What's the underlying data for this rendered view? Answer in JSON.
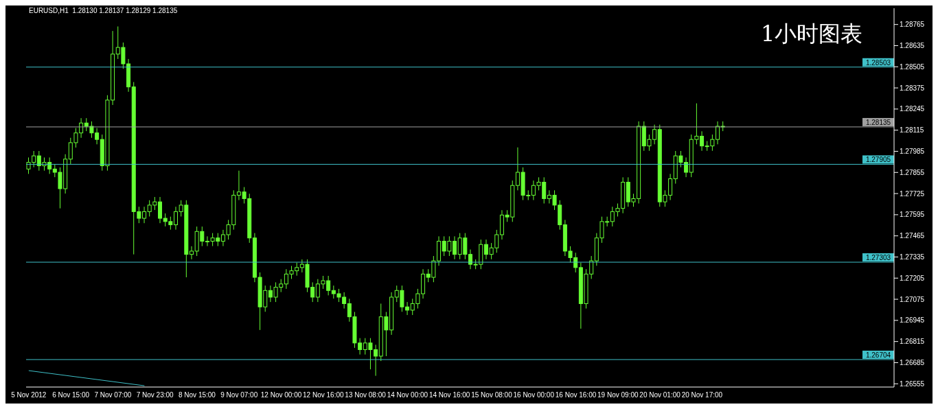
{
  "chart_data": {
    "type": "candlestick",
    "title": "EURUSD,H1  1.28130 1.28137 1.28129 1.28135",
    "annotations": [
      "1小时图表"
    ],
    "categories": [
      "5 Nov 2012",
      null,
      null,
      null,
      null,
      null,
      null,
      null,
      "6 Nov 15:00",
      null,
      null,
      null,
      null,
      null,
      null,
      null,
      "7 Nov 07:00",
      null,
      null,
      null,
      null,
      null,
      null,
      null,
      "7 Nov 23:00",
      null,
      null,
      null,
      null,
      null,
      null,
      null,
      "8 Nov 15:00",
      null,
      null,
      null,
      null,
      null,
      null,
      null,
      "9 Nov 07:00",
      null,
      null,
      null,
      null,
      null,
      null,
      null,
      "12 Nov 00:00",
      null,
      null,
      null,
      null,
      null,
      null,
      null,
      "12 Nov 16:00",
      null,
      null,
      null,
      null,
      null,
      null,
      null,
      "13 Nov 08:00",
      null,
      null,
      null,
      null,
      null,
      null,
      null,
      "14 Nov 00:00",
      null,
      null,
      null,
      null,
      null,
      null,
      null,
      "14 Nov 16:00",
      null,
      null,
      null,
      null,
      null,
      null,
      null,
      "15 Nov 08:00",
      null,
      null,
      null,
      null,
      null,
      null,
      null,
      "16 Nov 00:00",
      null,
      null,
      null,
      null,
      null,
      null,
      null,
      "16 Nov 16:00",
      null,
      null,
      null,
      null,
      null,
      null,
      null,
      "19 Nov 09:00",
      null,
      null,
      null,
      null,
      null,
      null,
      null,
      "20 Nov 01:00",
      null,
      null,
      null,
      null,
      null,
      null,
      null,
      "20 Nov 17:00",
      null,
      null,
      null,
      null,
      null,
      null,
      null,
      null,
      null,
      null,
      null,
      null,
      null,
      null,
      null,
      null,
      null,
      null,
      null,
      null,
      null,
      null,
      null,
      null,
      null,
      null,
      null,
      null,
      null,
      null,
      null,
      null,
      null,
      null,
      null,
      null
    ],
    "color": "#66ff33",
    "ohlc": [
      [
        1.27876,
        1.27947,
        1.27846,
        1.27917
      ],
      [
        1.27917,
        1.27987,
        1.27887,
        1.27957
      ],
      [
        1.27957,
        1.27987,
        1.27866,
        1.27896
      ],
      [
        1.27896,
        1.27947,
        1.27866,
        1.27917
      ],
      [
        1.27917,
        1.27947,
        1.27846,
        1.27876
      ],
      [
        1.27876,
        1.27906,
        1.27826,
        1.27856
      ],
      [
        1.27856,
        1.27886,
        1.27634,
        1.27755
      ],
      [
        1.27755,
        1.27967,
        1.27725,
        1.27937
      ],
      [
        1.27937,
        1.28068,
        1.27907,
        1.28038
      ],
      [
        1.28038,
        1.28128,
        1.28008,
        1.28098
      ],
      [
        1.28098,
        1.28189,
        1.28068,
        1.28159
      ],
      [
        1.28159,
        1.28189,
        1.28109,
        1.28139
      ],
      [
        1.28139,
        1.28169,
        1.28068,
        1.28098
      ],
      [
        1.28098,
        1.28128,
        1.28028,
        1.28058
      ],
      [
        1.28058,
        1.28088,
        1.27866,
        1.27896
      ],
      [
        1.27896,
        1.2833,
        1.27866,
        1.283
      ],
      [
        1.283,
        1.28725,
        1.2827,
        1.28583
      ],
      [
        1.28583,
        1.28753,
        1.28553,
        1.28624
      ],
      [
        1.28624,
        1.28654,
        1.28493,
        1.28523
      ],
      [
        1.28523,
        1.28553,
        1.28351,
        1.28381
      ],
      [
        1.28381,
        1.28411,
        1.27351,
        1.27614
      ],
      [
        1.27614,
        1.27644,
        1.27543,
        1.27573
      ],
      [
        1.27573,
        1.27644,
        1.27543,
        1.27614
      ],
      [
        1.27614,
        1.27684,
        1.27584,
        1.27654
      ],
      [
        1.27654,
        1.27704,
        1.27624,
        1.27674
      ],
      [
        1.27674,
        1.27704,
        1.27543,
        1.27573
      ],
      [
        1.27573,
        1.27603,
        1.27523,
        1.27553
      ],
      [
        1.27553,
        1.27583,
        1.27503,
        1.27533
      ],
      [
        1.27533,
        1.27644,
        1.27503,
        1.27614
      ],
      [
        1.27614,
        1.27684,
        1.27584,
        1.27654
      ],
      [
        1.27654,
        1.27684,
        1.2721,
        1.27351
      ],
      [
        1.27351,
        1.27401,
        1.27321,
        1.27371
      ],
      [
        1.27371,
        1.27522,
        1.27341,
        1.27492
      ],
      [
        1.27492,
        1.27522,
        1.27402,
        1.27432
      ],
      [
        1.27432,
        1.27462,
        1.27402,
        1.27432
      ],
      [
        1.27432,
        1.27482,
        1.27402,
        1.27452
      ],
      [
        1.27452,
        1.27482,
        1.27402,
        1.27432
      ],
      [
        1.27432,
        1.27502,
        1.27402,
        1.27472
      ],
      [
        1.27472,
        1.27563,
        1.27442,
        1.27533
      ],
      [
        1.27533,
        1.27745,
        1.27503,
        1.27715
      ],
      [
        1.27715,
        1.27866,
        1.27685,
        1.27735
      ],
      [
        1.27735,
        1.27765,
        1.27664,
        1.27694
      ],
      [
        1.27694,
        1.27724,
        1.27422,
        1.27452
      ],
      [
        1.27452,
        1.27482,
        1.2718,
        1.2721
      ],
      [
        1.2721,
        1.2724,
        1.26886,
        1.27028
      ],
      [
        1.27028,
        1.27159,
        1.26998,
        1.27129
      ],
      [
        1.27129,
        1.27159,
        1.27058,
        1.27088
      ],
      [
        1.27088,
        1.27179,
        1.27058,
        1.27149
      ],
      [
        1.27149,
        1.27199,
        1.27119,
        1.27169
      ],
      [
        1.27169,
        1.2726,
        1.27139,
        1.2723
      ],
      [
        1.2723,
        1.2728,
        1.272,
        1.2725
      ],
      [
        1.2725,
        1.273,
        1.2722,
        1.2727
      ],
      [
        1.2727,
        1.2732,
        1.2724,
        1.2729
      ],
      [
        1.2729,
        1.2732,
        1.27119,
        1.27149
      ],
      [
        1.27149,
        1.27179,
        1.27058,
        1.27088
      ],
      [
        1.27088,
        1.27199,
        1.27058,
        1.27169
      ],
      [
        1.27169,
        1.27219,
        1.27139,
        1.27189
      ],
      [
        1.27189,
        1.27219,
        1.27099,
        1.27129
      ],
      [
        1.27129,
        1.27159,
        1.27079,
        1.27109
      ],
      [
        1.27109,
        1.27139,
        1.27058,
        1.27088
      ],
      [
        1.27088,
        1.27118,
        1.27018,
        1.27048
      ],
      [
        1.27048,
        1.27078,
        1.26937,
        1.26967
      ],
      [
        1.26967,
        1.26997,
        1.26776,
        1.26806
      ],
      [
        1.26806,
        1.26836,
        1.26735,
        1.26765
      ],
      [
        1.26765,
        1.26836,
        1.26735,
        1.26806
      ],
      [
        1.26806,
        1.26836,
        1.26644,
        1.26765
      ],
      [
        1.26765,
        1.26795,
        1.26604,
        1.26725
      ],
      [
        1.26725,
        1.27048,
        1.26695,
        1.26967
      ],
      [
        1.26967,
        1.26997,
        1.26725,
        1.26886
      ],
      [
        1.26886,
        1.27118,
        1.26856,
        1.27088
      ],
      [
        1.27088,
        1.27159,
        1.27058,
        1.27129
      ],
      [
        1.27129,
        1.27159,
        1.26998,
        1.27028
      ],
      [
        1.27028,
        1.27058,
        1.26978,
        1.27008
      ],
      [
        1.27008,
        1.27078,
        1.26978,
        1.27048
      ],
      [
        1.27048,
        1.27139,
        1.27018,
        1.27109
      ],
      [
        1.27109,
        1.2726,
        1.27079,
        1.2723
      ],
      [
        1.2723,
        1.2726,
        1.2718,
        1.2721
      ],
      [
        1.2721,
        1.27341,
        1.2718,
        1.27311
      ],
      [
        1.27311,
        1.27462,
        1.27281,
        1.27432
      ],
      [
        1.27432,
        1.27462,
        1.27341,
        1.27371
      ],
      [
        1.27371,
        1.27462,
        1.27341,
        1.27432
      ],
      [
        1.27432,
        1.27462,
        1.27321,
        1.27351
      ],
      [
        1.27351,
        1.27482,
        1.27321,
        1.27452
      ],
      [
        1.27452,
        1.27482,
        1.27321,
        1.27351
      ],
      [
        1.27351,
        1.27381,
        1.2726,
        1.2729
      ],
      [
        1.2729,
        1.2732,
        1.2726,
        1.2729
      ],
      [
        1.2729,
        1.27442,
        1.2726,
        1.27412
      ],
      [
        1.27412,
        1.27442,
        1.27321,
        1.27351
      ],
      [
        1.27351,
        1.27421,
        1.27321,
        1.27391
      ],
      [
        1.27391,
        1.27502,
        1.27361,
        1.27472
      ],
      [
        1.27472,
        1.27623,
        1.27442,
        1.27593
      ],
      [
        1.27593,
        1.27623,
        1.27551,
        1.27581
      ],
      [
        1.27581,
        1.27805,
        1.27551,
        1.27775
      ],
      [
        1.27775,
        1.28009,
        1.27745,
        1.27856
      ],
      [
        1.27856,
        1.27886,
        1.27685,
        1.27715
      ],
      [
        1.27715,
        1.27745,
        1.27685,
        1.27715
      ],
      [
        1.27715,
        1.27805,
        1.27685,
        1.27775
      ],
      [
        1.27775,
        1.27825,
        1.27745,
        1.27795
      ],
      [
        1.27795,
        1.27825,
        1.27664,
        1.27694
      ],
      [
        1.27694,
        1.27745,
        1.27664,
        1.27715
      ],
      [
        1.27715,
        1.27745,
        1.27624,
        1.27654
      ],
      [
        1.27654,
        1.27684,
        1.27503,
        1.27533
      ],
      [
        1.27533,
        1.27563,
        1.27341,
        1.27371
      ],
      [
        1.27371,
        1.27401,
        1.27301,
        1.27331
      ],
      [
        1.27331,
        1.27361,
        1.2724,
        1.2727
      ],
      [
        1.2727,
        1.273,
        1.26894,
        1.27048
      ],
      [
        1.27048,
        1.2726,
        1.27018,
        1.2723
      ],
      [
        1.2723,
        1.27341,
        1.272,
        1.27311
      ],
      [
        1.27311,
        1.27482,
        1.27281,
        1.27452
      ],
      [
        1.27452,
        1.27583,
        1.27422,
        1.27553
      ],
      [
        1.27553,
        1.27583,
        1.27523,
        1.27553
      ],
      [
        1.27553,
        1.27644,
        1.27523,
        1.27614
      ],
      [
        1.27614,
        1.27664,
        1.27584,
        1.27634
      ],
      [
        1.27634,
        1.27825,
        1.27604,
        1.27795
      ],
      [
        1.27795,
        1.27825,
        1.27644,
        1.27674
      ],
      [
        1.27674,
        1.27724,
        1.27644,
        1.27694
      ],
      [
        1.27694,
        1.28169,
        1.27664,
        1.28139
      ],
      [
        1.28139,
        1.28169,
        1.27988,
        1.28018
      ],
      [
        1.28018,
        1.28088,
        1.27988,
        1.28058
      ],
      [
        1.28058,
        1.28149,
        1.28028,
        1.28119
      ],
      [
        1.28119,
        1.28149,
        1.27644,
        1.27674
      ],
      [
        1.27674,
        1.27745,
        1.27644,
        1.27715
      ],
      [
        1.27715,
        1.27846,
        1.27685,
        1.27816
      ],
      [
        1.27816,
        1.27987,
        1.27786,
        1.27957
      ],
      [
        1.27957,
        1.27987,
        1.27887,
        1.27917
      ],
      [
        1.27917,
        1.27947,
        1.27826,
        1.27856
      ],
      [
        1.27856,
        1.28088,
        1.27826,
        1.28058
      ],
      [
        1.28058,
        1.2828,
        1.28028,
        1.28078
      ],
      [
        1.28078,
        1.28108,
        1.27988,
        1.28018
      ],
      [
        1.28018,
        1.28048,
        1.27988,
        1.28018
      ],
      [
        1.28018,
        1.28088,
        1.27988,
        1.28058
      ],
      [
        1.28058,
        1.28169,
        1.28028,
        1.28139
      ],
      [
        1.28139,
        1.28169,
        1.28109,
        1.28135
      ],
      null,
      null,
      null,
      null,
      null,
      null,
      null,
      null,
      null,
      null,
      null,
      null,
      null,
      null,
      null,
      null,
      null,
      null,
      null,
      null,
      null,
      null,
      null,
      null,
      null,
      null,
      null,
      null,
      null,
      null,
      null,
      null
    ],
    "series": [
      {
        "type": "line",
        "color": "#3fc1c9",
        "values": [
          1.26636,
          null,
          null,
          null,
          null,
          null,
          null,
          null,
          null,
          null,
          null,
          null,
          null,
          null,
          null,
          null,
          null,
          null,
          null,
          null,
          null,
          null,
          1.26543,
          null,
          null,
          null,
          null,
          null,
          null,
          null,
          null,
          null,
          null,
          null,
          null,
          null,
          null,
          null,
          null,
          null,
          null,
          null,
          null,
          null,
          null,
          null,
          null,
          null,
          null,
          null,
          null,
          null,
          null,
          null,
          null,
          null,
          null,
          null,
          null,
          null,
          null,
          null,
          null,
          null,
          null,
          null,
          null,
          null,
          null,
          null,
          null,
          null,
          null,
          null,
          null,
          null,
          null,
          null,
          null,
          null,
          null,
          null,
          null,
          null,
          null,
          null,
          null,
          null,
          null,
          null,
          null,
          null,
          null,
          null,
          null,
          null,
          null,
          null,
          null,
          null,
          null,
          null,
          null,
          null,
          null,
          null,
          null,
          null,
          null,
          null,
          null,
          null,
          null,
          null,
          null,
          null,
          null,
          null,
          null,
          null,
          null,
          null,
          null,
          null,
          null,
          null,
          null,
          null,
          null,
          null,
          null,
          null,
          null,
          null,
          null,
          null,
          null,
          null,
          null,
          null,
          null,
          null,
          null,
          null,
          null,
          null,
          null,
          null,
          null,
          null,
          null,
          null,
          null,
          null,
          null,
          null,
          null,
          null,
          null,
          null,
          null,
          null,
          null,
          null,
          null
        ]
      }
    ],
    "ylim": [
      1.26535,
      1.28865
    ],
    "yticks": [
      1.26555,
      1.26685,
      1.26815,
      1.26945,
      1.27075,
      1.27205,
      1.27335,
      1.27465,
      1.27595,
      1.27725,
      1.27855,
      1.27985,
      1.28115,
      1.28245,
      1.28375,
      1.28505,
      1.28635,
      1.28765
    ],
    "ref_lines": [
      {
        "axis": "y",
        "value": 1.28503,
        "label": "1.28503",
        "color": "#3fc1c9"
      },
      {
        "axis": "y",
        "value": 1.28135,
        "label": "1.28135",
        "color": "#a0a0a0"
      },
      {
        "axis": "y",
        "value": 1.27905,
        "label": "1.27905",
        "color": "#3fc1c9"
      },
      {
        "axis": "y",
        "value": 1.27303,
        "label": "1.27303",
        "color": "#3fc1c9"
      },
      {
        "axis": "y",
        "value": 1.26704,
        "label": "1.26704",
        "color": "#3fc1c9"
      }
    ]
  }
}
